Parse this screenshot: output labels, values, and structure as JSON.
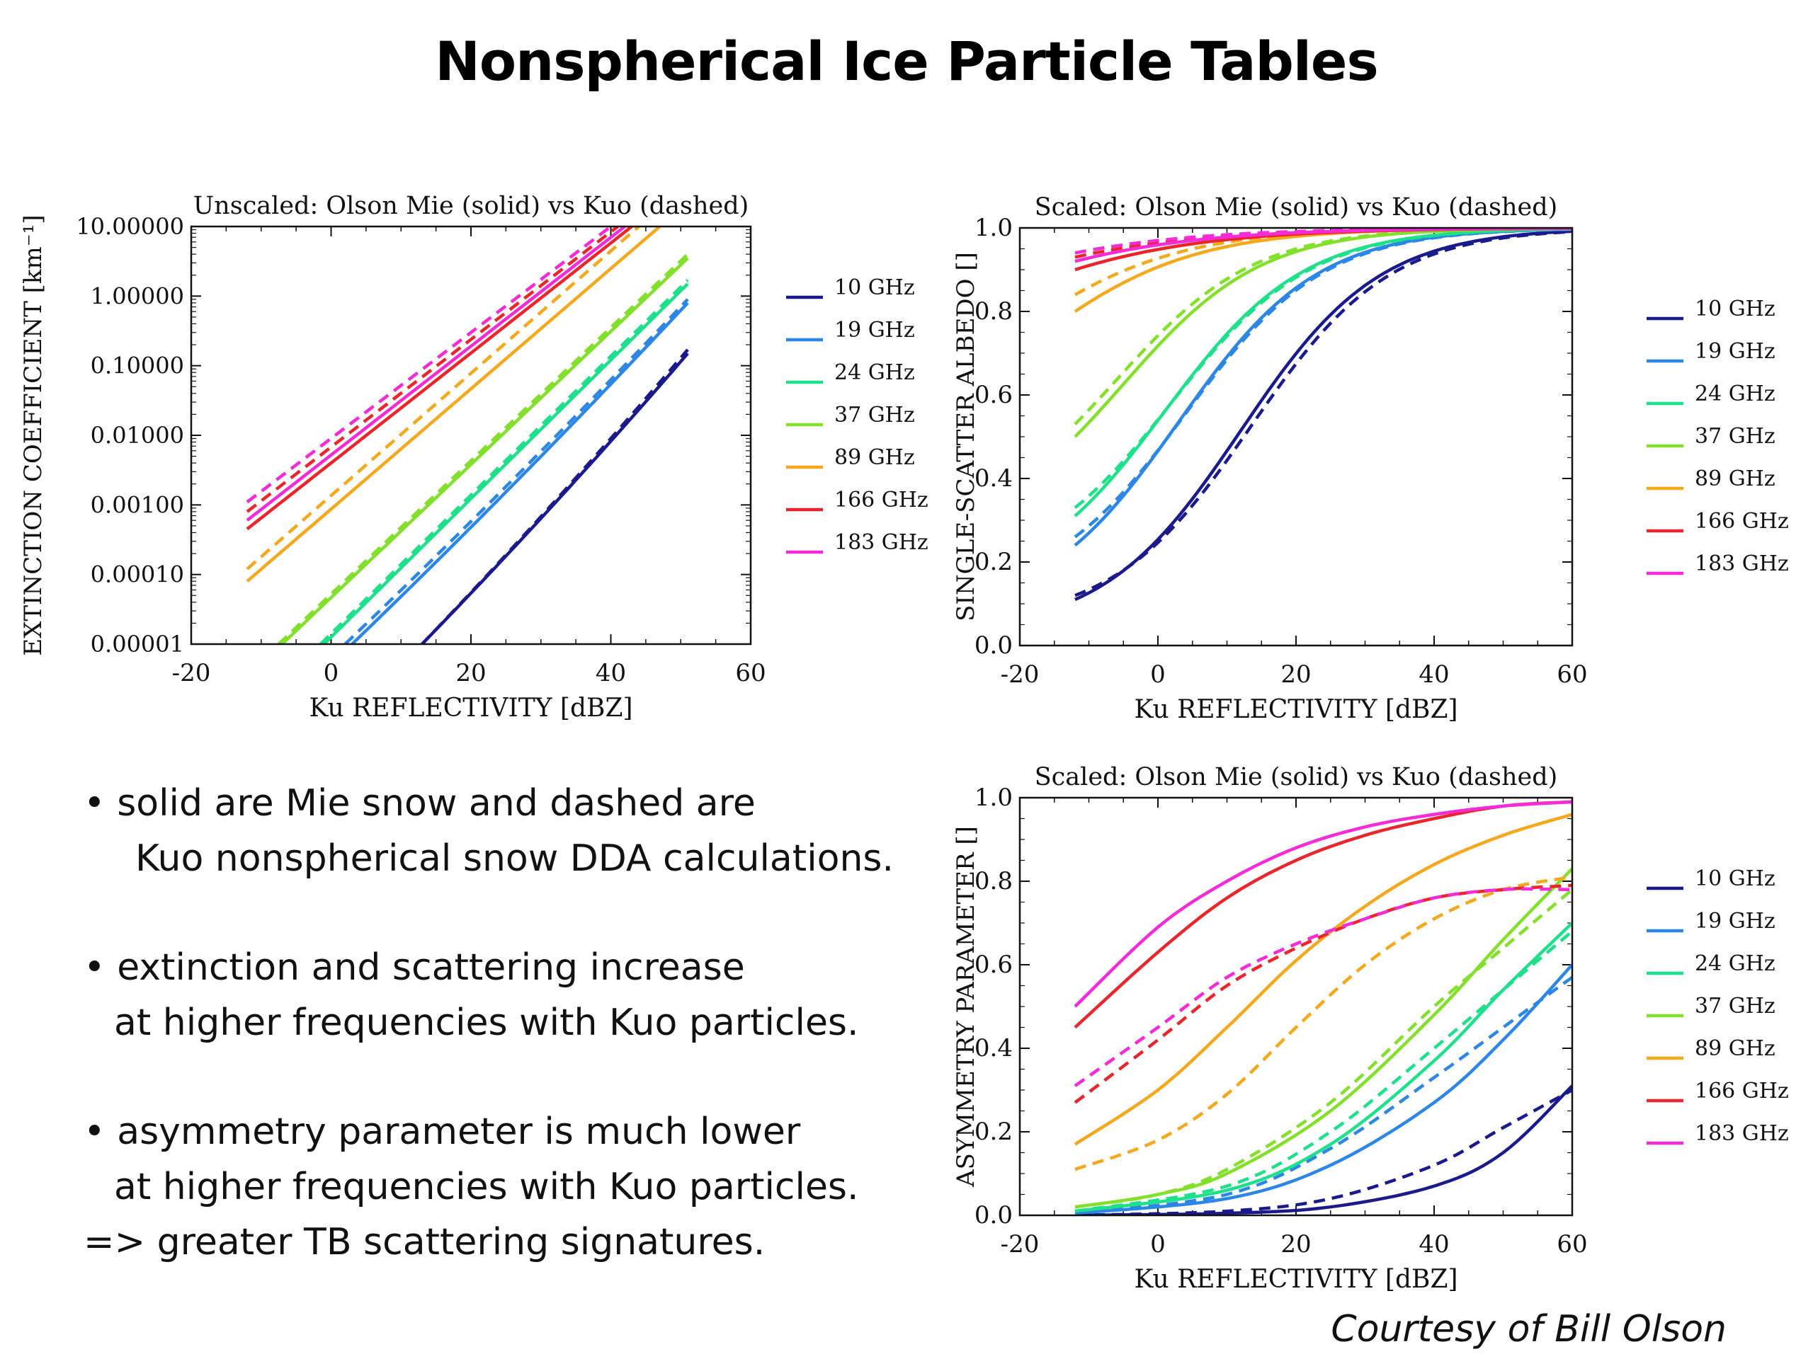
{
  "slide": {
    "title": "Nonspherical Ice Particle Tables",
    "bullets": [
      "•  solid are Mie snow and dashed are",
      "Kuo nonspherical snow DDA calculations.",
      "• extinction and scattering increase",
      "at higher frequencies with Kuo particles.",
      "• asymmetry parameter is much lower",
      "at higher frequencies with Kuo particles.",
      "=> greater TB scattering signatures."
    ],
    "courtesy": "Courtesy of Bill Olson"
  },
  "chart_data": [
    {
      "type": "line",
      "id": "extinction",
      "title": "Unscaled: Olson Mie (solid) vs Kuo (dashed)",
      "xlabel": "Ku REFLECTIVITY [dBZ]",
      "ylabel": "EXTINCTION COEFFICIENT [km⁻¹]",
      "xlim": [
        -20,
        60
      ],
      "ylim": [
        1e-05,
        10
      ],
      "yscale": "log",
      "xticks": [
        "-20",
        "0",
        "20",
        "40",
        "60"
      ],
      "yticks": [
        "0.00001",
        "0.00010",
        "0.00100",
        "0.01000",
        "0.10000",
        "1.00000",
        "10.00000"
      ],
      "legend_position": "right",
      "series": [
        {
          "name": "10 GHz",
          "color": "#1a1a8c",
          "solid": [
            [
              13,
              1e-05
            ],
            [
              51,
              0.15
            ]
          ],
          "dashed": [
            [
              13,
              1e-05
            ],
            [
              51,
              0.17
            ]
          ]
        },
        {
          "name": "19 GHz",
          "color": "#2b86e6",
          "solid": [
            [
              3,
              1e-05
            ],
            [
              51,
              0.8
            ]
          ],
          "dashed": [
            [
              2,
              1e-05
            ],
            [
              51,
              0.9
            ]
          ]
        },
        {
          "name": "24 GHz",
          "color": "#1fe08a",
          "solid": [
            [
              -1,
              1e-05
            ],
            [
              51,
              1.5
            ]
          ],
          "dashed": [
            [
              -1.5,
              1e-05
            ],
            [
              51,
              1.7
            ]
          ]
        },
        {
          "name": "37 GHz",
          "color": "#82e02a",
          "solid": [
            [
              -7,
              1e-05
            ],
            [
              51,
              3.5
            ]
          ],
          "dashed": [
            [
              -7.5,
              1e-05
            ],
            [
              51,
              4
            ]
          ]
        },
        {
          "name": "89 GHz",
          "color": "#f5a81c",
          "solid": [
            [
              -12,
              8e-05
            ],
            [
              47,
              10
            ]
          ],
          "dashed": [
            [
              -12,
              0.00012
            ],
            [
              44,
              10
            ]
          ]
        },
        {
          "name": "166 GHz",
          "color": "#e8262b",
          "solid": [
            [
              -12,
              0.00045
            ],
            [
              43,
              10
            ]
          ],
          "dashed": [
            [
              -12,
              0.0008
            ],
            [
              41,
              10
            ]
          ]
        },
        {
          "name": "183 GHz",
          "color": "#f52ad8",
          "solid": [
            [
              -12,
              0.0006
            ],
            [
              42,
              10
            ]
          ],
          "dashed": [
            [
              -12,
              0.0011
            ],
            [
              40,
              10
            ]
          ]
        }
      ]
    },
    {
      "type": "line",
      "id": "albedo",
      "title": "Scaled: Olson Mie (solid) vs Kuo (dashed)",
      "xlabel": "Ku REFLECTIVITY [dBZ]",
      "ylabel": "SINGLE-SCATTER ALBEDO []",
      "xlim": [
        -20,
        60
      ],
      "ylim": [
        0,
        1
      ],
      "xticks": [
        "-20",
        "0",
        "20",
        "40",
        "60"
      ],
      "yticks": [
        "0.0",
        "0.2",
        "0.4",
        "0.6",
        "0.8",
        "1.0"
      ],
      "legend_position": "right",
      "series": [
        {
          "name": "10 GHz",
          "color": "#1a1a8c",
          "solid": [
            0.11,
            0.95,
            12,
            10
          ],
          "dashed": [
            0.12,
            0.95,
            13.5,
            10
          ]
        },
        {
          "name": "19 GHz",
          "color": "#2b86e6",
          "solid": [
            0.24,
            0.95,
            3,
            10
          ],
          "dashed": [
            0.26,
            0.95,
            4,
            10
          ]
        },
        {
          "name": "24 GHz",
          "color": "#1fe08a",
          "solid": [
            0.31,
            0.95,
            1,
            10
          ],
          "dashed": [
            0.33,
            0.95,
            2,
            10
          ]
        },
        {
          "name": "37 GHz",
          "color": "#82e02a",
          "solid": [
            0.5,
            0.95,
            -5,
            10
          ],
          "dashed": [
            0.53,
            0.95,
            -6,
            10
          ]
        },
        {
          "name": "89 GHz",
          "color": "#f5a81c",
          "solid": [
            0.8,
            0.88,
            -20,
            12
          ],
          "dashed": [
            0.84,
            0.88,
            -22,
            12
          ]
        },
        {
          "name": "166 GHz",
          "color": "#e8262b",
          "solid": [
            0.9,
            0.9,
            -30,
            15
          ],
          "dashed": [
            0.93,
            0.9,
            -32,
            15
          ]
        },
        {
          "name": "183 GHz",
          "color": "#f52ad8",
          "solid": [
            0.92,
            0.9,
            -32,
            15
          ],
          "dashed": [
            0.94,
            0.9,
            -34,
            15
          ]
        }
      ]
    },
    {
      "type": "line",
      "id": "asymmetry",
      "title": "Scaled: Olson Mie (solid) vs Kuo (dashed)",
      "xlabel": "Ku REFLECTIVITY [dBZ]",
      "ylabel": "ASYMMETRY PARAMETER []",
      "xlim": [
        -20,
        60
      ],
      "ylim": [
        0,
        1
      ],
      "xticks": [
        "-20",
        "0",
        "20",
        "40",
        "60"
      ],
      "yticks": [
        "0.0",
        "0.2",
        "0.4",
        "0.6",
        "0.8",
        "1.0"
      ],
      "legend_position": "right",
      "series": [
        {
          "name": "10 GHz",
          "color": "#1a1a8c",
          "solid": [
            [
              -12,
              0.0
            ],
            [
              10,
              0.005
            ],
            [
              25,
              0.02
            ],
            [
              40,
              0.07
            ],
            [
              50,
              0.15
            ],
            [
              60,
              0.31
            ]
          ],
          "dashed": [
            [
              -12,
              0.0
            ],
            [
              10,
              0.01
            ],
            [
              25,
              0.04
            ],
            [
              40,
              0.12
            ],
            [
              50,
              0.21
            ],
            [
              60,
              0.3
            ]
          ]
        },
        {
          "name": "19 GHz",
          "color": "#2b86e6",
          "solid": [
            [
              -12,
              0.005
            ],
            [
              10,
              0.04
            ],
            [
              25,
              0.12
            ],
            [
              40,
              0.27
            ],
            [
              50,
              0.42
            ],
            [
              60,
              0.6
            ]
          ],
          "dashed": [
            [
              -12,
              0.005
            ],
            [
              10,
              0.05
            ],
            [
              25,
              0.16
            ],
            [
              40,
              0.33
            ],
            [
              50,
              0.45
            ],
            [
              60,
              0.57
            ]
          ]
        },
        {
          "name": "24 GHz",
          "color": "#1fe08a",
          "solid": [
            [
              -12,
              0.01
            ],
            [
              10,
              0.06
            ],
            [
              25,
              0.17
            ],
            [
              40,
              0.37
            ],
            [
              50,
              0.54
            ],
            [
              60,
              0.7
            ]
          ],
          "dashed": [
            [
              -12,
              0.01
            ],
            [
              10,
              0.07
            ],
            [
              25,
              0.2
            ],
            [
              40,
              0.4
            ],
            [
              50,
              0.54
            ],
            [
              60,
              0.68
            ]
          ]
        },
        {
          "name": "37 GHz",
          "color": "#82e02a",
          "solid": [
            [
              -12,
              0.02
            ],
            [
              0,
              0.05
            ],
            [
              10,
              0.1
            ],
            [
              25,
              0.25
            ],
            [
              40,
              0.48
            ],
            [
              50,
              0.66
            ],
            [
              60,
              0.83
            ]
          ],
          "dashed": [
            [
              -12,
              0.02
            ],
            [
              0,
              0.05
            ],
            [
              10,
              0.11
            ],
            [
              25,
              0.27
            ],
            [
              40,
              0.5
            ],
            [
              50,
              0.64
            ],
            [
              60,
              0.78
            ]
          ]
        },
        {
          "name": "89 GHz",
          "color": "#f5a81c",
          "solid": [
            [
              -12,
              0.17
            ],
            [
              0,
              0.3
            ],
            [
              10,
              0.45
            ],
            [
              20,
              0.61
            ],
            [
              30,
              0.74
            ],
            [
              40,
              0.84
            ],
            [
              50,
              0.91
            ],
            [
              60,
              0.96
            ]
          ],
          "dashed": [
            [
              -12,
              0.11
            ],
            [
              0,
              0.18
            ],
            [
              10,
              0.29
            ],
            [
              20,
              0.45
            ],
            [
              30,
              0.6
            ],
            [
              40,
              0.71
            ],
            [
              50,
              0.78
            ],
            [
              60,
              0.81
            ]
          ]
        },
        {
          "name": "166 GHz",
          "color": "#e8262b",
          "solid": [
            [
              -12,
              0.45
            ],
            [
              0,
              0.63
            ],
            [
              10,
              0.76
            ],
            [
              20,
              0.85
            ],
            [
              30,
              0.91
            ],
            [
              40,
              0.95
            ],
            [
              50,
              0.98
            ],
            [
              60,
              0.99
            ]
          ],
          "dashed": [
            [
              -12,
              0.27
            ],
            [
              0,
              0.42
            ],
            [
              10,
              0.55
            ],
            [
              20,
              0.64
            ],
            [
              30,
              0.71
            ],
            [
              40,
              0.76
            ],
            [
              50,
              0.78
            ],
            [
              60,
              0.79
            ]
          ]
        },
        {
          "name": "183 GHz",
          "color": "#f52ad8",
          "solid": [
            [
              -12,
              0.5
            ],
            [
              0,
              0.69
            ],
            [
              10,
              0.8
            ],
            [
              20,
              0.88
            ],
            [
              30,
              0.93
            ],
            [
              40,
              0.96
            ],
            [
              50,
              0.98
            ],
            [
              60,
              0.99
            ]
          ],
          "dashed": [
            [
              -12,
              0.31
            ],
            [
              0,
              0.45
            ],
            [
              10,
              0.57
            ],
            [
              20,
              0.65
            ],
            [
              30,
              0.71
            ],
            [
              40,
              0.76
            ],
            [
              50,
              0.78
            ],
            [
              60,
              0.78
            ]
          ]
        }
      ]
    }
  ]
}
